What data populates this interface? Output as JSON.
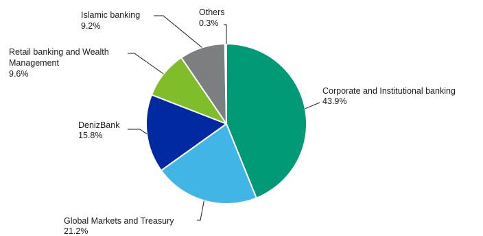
{
  "chart_data": {
    "type": "pie",
    "title": "",
    "slices": [
      {
        "label": "Corporate and Institutional banking",
        "value_label": "43.9%",
        "value": 43.9,
        "color": "#009a77"
      },
      {
        "label": "Global Markets and Treasury",
        "value_label": "21.2%",
        "value": 21.2,
        "color": "#41b6e6"
      },
      {
        "label": "DenizBank",
        "value_label": "15.8%",
        "value": 15.8,
        "color": "#0029a2"
      },
      {
        "label": "Retail banking and Wealth Management",
        "value_label": "9.6%",
        "value": 9.6,
        "color": "#7fbe2a"
      },
      {
        "label": "Islamic banking",
        "value_label": "9.2%",
        "value": 9.2,
        "color": "#7c7f82"
      },
      {
        "label": "Others",
        "value_label": "0.3%",
        "value": 0.3,
        "color": "#c4c6c8"
      }
    ],
    "start_angle_deg": 0,
    "direction": "clockwise",
    "legend": "none"
  }
}
